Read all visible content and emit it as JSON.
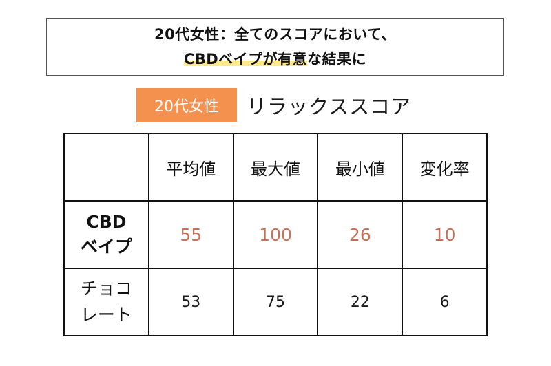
{
  "header": {
    "line1": "20代女性：全てのスコアにおいて、",
    "line2_highlighted": "CBDベイプが有意",
    "line2_rest": "な結果に"
  },
  "subtitle": {
    "tag": "20代女性",
    "title": "リラックススコア"
  },
  "table": {
    "columns": [
      "平均値",
      "最大値",
      "最小値",
      "変化率"
    ],
    "rows": [
      {
        "label_line1": "CBD",
        "label_line2": "ベイプ",
        "values": [
          "55",
          "100",
          "26",
          "10"
        ]
      },
      {
        "label_line1": "チョコ",
        "label_line2": "レート",
        "values": [
          "53",
          "75",
          "22",
          "6"
        ]
      }
    ]
  },
  "colors": {
    "tag_bg": "#f5914f",
    "accent_value": "#c86f58",
    "highlight": "#fbe98a"
  }
}
